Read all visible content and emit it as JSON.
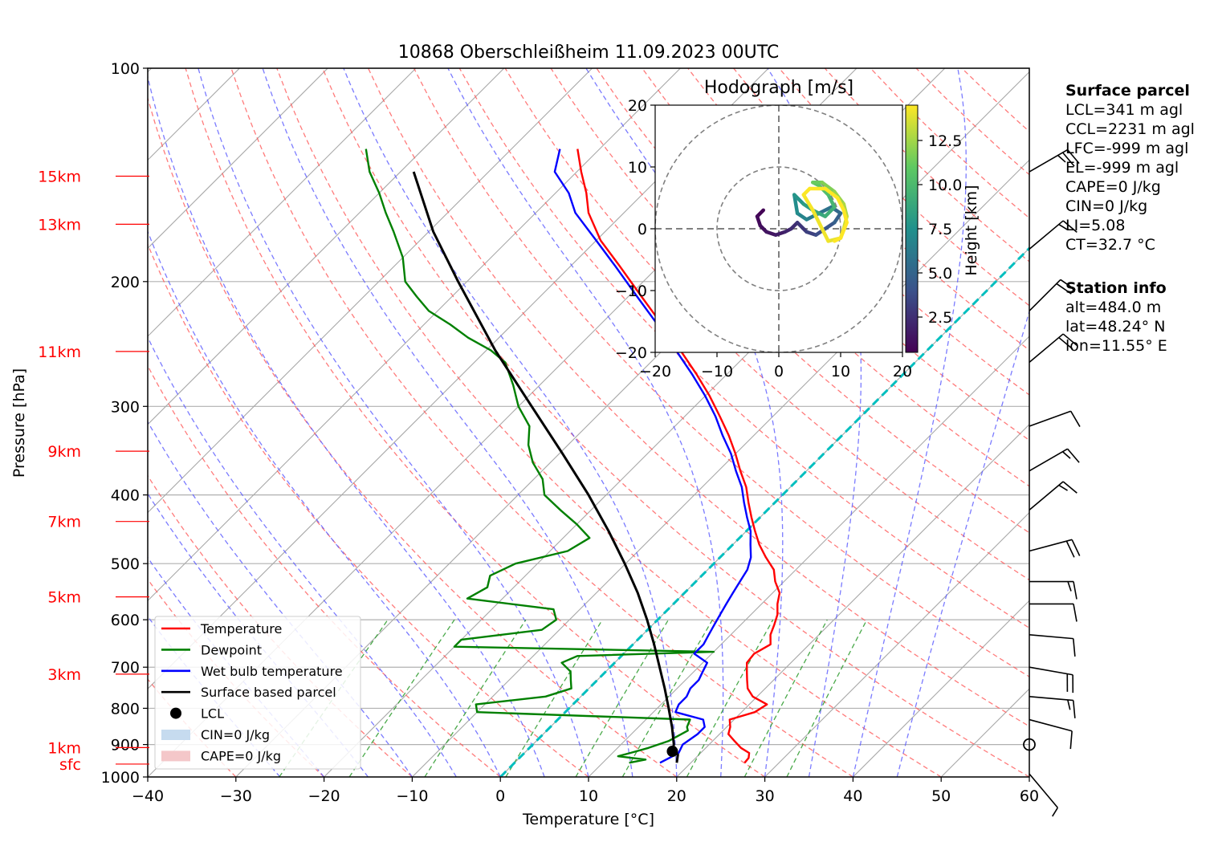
{
  "chart_data": {
    "type": "skew-t",
    "title": "10868 Oberschleißheim 11.09.2023 00UTC",
    "xlabel": "Temperature [°C]",
    "ylabel": "Pressure [hPa]",
    "xlim": [
      -40,
      60
    ],
    "ylim": [
      1000,
      100
    ],
    "x_ticks": [
      "−40",
      "−30",
      "−20",
      "−10",
      "0",
      "10",
      "20",
      "30",
      "40",
      "50",
      "60"
    ],
    "y_ticks": [
      "100",
      "200",
      "300",
      "400",
      "500",
      "600",
      "700",
      "800",
      "900",
      "1000"
    ],
    "height_labels": [
      "15km",
      "13km",
      "11km",
      "9km",
      "7km",
      "5km",
      "3km",
      "1km",
      "sfc"
    ],
    "height_label_pressures": [
      142,
      166,
      251,
      347,
      436,
      557,
      716,
      909,
      959
    ],
    "colors": {
      "temperature": "#ff0000",
      "dewpoint": "#008000",
      "wetbulb": "#0000ff",
      "parcel": "#000000",
      "lcl": "#000000",
      "cin_fill": "#c6dbef",
      "cape_fill": "#f4c7c9",
      "isotherm_zero": "#00bfbf",
      "height_labels": "#ff0000"
    },
    "series": [
      {
        "name": "Temperature",
        "points": [
          [
            955,
            26.1
          ],
          [
            940,
            26.0
          ],
          [
            925,
            25.5
          ],
          [
            910,
            24.0
          ],
          [
            890,
            22.5
          ],
          [
            870,
            21.0
          ],
          [
            850,
            20.4
          ],
          [
            830,
            19.5
          ],
          [
            810,
            21.5
          ],
          [
            790,
            22.0
          ],
          [
            770,
            19.5
          ],
          [
            750,
            18.0
          ],
          [
            730,
            17.0
          ],
          [
            710,
            16.0
          ],
          [
            690,
            15.0
          ],
          [
            670,
            14.8
          ],
          [
            650,
            15.6
          ],
          [
            630,
            14.5
          ],
          [
            610,
            13.8
          ],
          [
            590,
            13.0
          ],
          [
            570,
            11.8
          ],
          [
            550,
            10.8
          ],
          [
            530,
            9.0
          ],
          [
            510,
            7.5
          ],
          [
            490,
            5.2
          ],
          [
            470,
            3.0
          ],
          [
            450,
            1.0
          ],
          [
            430,
            -1.0
          ],
          [
            410,
            -3.0
          ],
          [
            390,
            -5.0
          ],
          [
            370,
            -7.5
          ],
          [
            350,
            -10.0
          ],
          [
            330,
            -12.8
          ],
          [
            310,
            -16.0
          ],
          [
            290,
            -19.5
          ],
          [
            270,
            -23.5
          ],
          [
            250,
            -28.0
          ],
          [
            230,
            -33.0
          ],
          [
            210,
            -38.5
          ],
          [
            190,
            -44.5
          ],
          [
            175,
            -49.5
          ],
          [
            160,
            -54.0
          ],
          [
            150,
            -56.5
          ],
          [
            140,
            -59.5
          ],
          [
            130,
            -62.5
          ]
        ]
      },
      {
        "name": "Dewpoint",
        "points": [
          [
            955,
            13.0
          ],
          [
            945,
            14.5
          ],
          [
            935,
            11.0
          ],
          [
            925,
            12.0
          ],
          [
            910,
            13.5
          ],
          [
            890,
            15.0
          ],
          [
            860,
            16.0
          ],
          [
            850,
            15.5
          ],
          [
            830,
            15.0
          ],
          [
            810,
            -10.0
          ],
          [
            790,
            -11.0
          ],
          [
            770,
            -4.0
          ],
          [
            750,
            -2.0
          ],
          [
            730,
            -3.0
          ],
          [
            710,
            -4.0
          ],
          [
            690,
            -6.0
          ],
          [
            675,
            -5.0
          ],
          [
            666,
            10.0
          ],
          [
            655,
            -20.0
          ],
          [
            640,
            -20.0
          ],
          [
            620,
            -12.0
          ],
          [
            600,
            -11.5
          ],
          [
            580,
            -13.0
          ],
          [
            560,
            -24.0
          ],
          [
            540,
            -23.0
          ],
          [
            520,
            -24.0
          ],
          [
            500,
            -22.5
          ],
          [
            480,
            -18.0
          ],
          [
            460,
            -17.0
          ],
          [
            440,
            -20.0
          ],
          [
            420,
            -23.5
          ],
          [
            400,
            -27.0
          ],
          [
            380,
            -29.0
          ],
          [
            360,
            -32.0
          ],
          [
            340,
            -34.5
          ],
          [
            320,
            -36.5
          ],
          [
            300,
            -40.0
          ],
          [
            280,
            -43.0
          ],
          [
            260,
            -46.5
          ],
          [
            250,
            -49.5
          ],
          [
            240,
            -53.5
          ],
          [
            230,
            -57.0
          ],
          [
            220,
            -61.0
          ],
          [
            210,
            -64.0
          ],
          [
            200,
            -67.0
          ],
          [
            185,
            -70.0
          ],
          [
            170,
            -74.0
          ],
          [
            160,
            -77.0
          ],
          [
            150,
            -80.0
          ],
          [
            140,
            -83.5
          ],
          [
            130,
            -86.5
          ]
        ]
      },
      {
        "name": "Wet bulb temperature",
        "points": [
          [
            955,
            16.5
          ],
          [
            940,
            17.0
          ],
          [
            925,
            17.5
          ],
          [
            900,
            17.0
          ],
          [
            870,
            17.5
          ],
          [
            850,
            17.5
          ],
          [
            830,
            16.5
          ],
          [
            810,
            12.5
          ],
          [
            790,
            12.0
          ],
          [
            770,
            12.0
          ],
          [
            750,
            11.5
          ],
          [
            730,
            11.5
          ],
          [
            710,
            11.0
          ],
          [
            690,
            10.5
          ],
          [
            670,
            8.0
          ],
          [
            650,
            8.0
          ],
          [
            630,
            7.5
          ],
          [
            610,
            7.0
          ],
          [
            590,
            6.5
          ],
          [
            570,
            6.0
          ],
          [
            550,
            5.5
          ],
          [
            530,
            5.0
          ],
          [
            510,
            4.5
          ],
          [
            490,
            3.5
          ],
          [
            470,
            2.0
          ],
          [
            450,
            0.5
          ],
          [
            430,
            -1.5
          ],
          [
            410,
            -3.5
          ],
          [
            390,
            -5.5
          ],
          [
            370,
            -8.0
          ],
          [
            350,
            -10.5
          ],
          [
            330,
            -13.5
          ],
          [
            310,
            -16.5
          ],
          [
            290,
            -20.0
          ],
          [
            270,
            -24.0
          ],
          [
            250,
            -28.5
          ],
          [
            230,
            -33.5
          ],
          [
            210,
            -39.0
          ],
          [
            190,
            -45.0
          ],
          [
            175,
            -50.0
          ],
          [
            160,
            -55.5
          ],
          [
            150,
            -58.5
          ],
          [
            140,
            -62.5
          ],
          [
            130,
            -64.5
          ]
        ]
      },
      {
        "name": "Surface based parcel",
        "points": [
          [
            955,
            18.4
          ],
          [
            930,
            17.6
          ],
          [
            920,
            16.6
          ],
          [
            900,
            16.0
          ],
          [
            850,
            13.8
          ],
          [
            800,
            11.3
          ],
          [
            750,
            8.6
          ],
          [
            700,
            5.6
          ],
          [
            650,
            2.4
          ],
          [
            600,
            -1.2
          ],
          [
            550,
            -5.3
          ],
          [
            500,
            -10.1
          ],
          [
            450,
            -15.6
          ],
          [
            400,
            -22.0
          ],
          [
            350,
            -29.6
          ],
          [
            300,
            -38.5
          ],
          [
            250,
            -49.0
          ],
          [
            200,
            -61.0
          ],
          [
            170,
            -69.5
          ],
          [
            140,
            -78.5
          ]
        ]
      }
    ],
    "lcl_point": {
      "pressure": 920,
      "temperature": 16.6
    },
    "legend": {
      "placement": "lower-left",
      "entries": [
        "Temperature",
        "Dewpoint",
        "Wet bulb temperature",
        "Surface based parcel",
        "LCL",
        "CIN=0 J/kg",
        "CAPE=0 J/kg"
      ]
    },
    "wind_barbs": [
      {
        "pressure": 140,
        "speed_kt": 25,
        "dir_deg": 240
      },
      {
        "pressure": 180,
        "speed_kt": 15,
        "dir_deg": 230
      },
      {
        "pressure": 220,
        "speed_kt": 20,
        "dir_deg": 225
      },
      {
        "pressure": 260,
        "speed_kt": 20,
        "dir_deg": 230
      },
      {
        "pressure": 320,
        "speed_kt": 10,
        "dir_deg": 250
      },
      {
        "pressure": 370,
        "speed_kt": 15,
        "dir_deg": 240
      },
      {
        "pressure": 420,
        "speed_kt": 15,
        "dir_deg": 230
      },
      {
        "pressure": 480,
        "speed_kt": 20,
        "dir_deg": 255
      },
      {
        "pressure": 530,
        "speed_kt": 15,
        "dir_deg": 270
      },
      {
        "pressure": 570,
        "speed_kt": 10,
        "dir_deg": 270
      },
      {
        "pressure": 630,
        "speed_kt": 10,
        "dir_deg": 275
      },
      {
        "pressure": 700,
        "speed_kt": 20,
        "dir_deg": 280
      },
      {
        "pressure": 770,
        "speed_kt": 15,
        "dir_deg": 275
      },
      {
        "pressure": 830,
        "speed_kt": 10,
        "dir_deg": 285
      },
      {
        "pressure": 900,
        "speed_kt": 0,
        "dir_deg": 0
      },
      {
        "pressure": 990,
        "speed_kt": 5,
        "dir_deg": 320
      }
    ],
    "hodograph": {
      "title": "Hodograph [m/s]",
      "xlim": [
        -20,
        20
      ],
      "ylim": [
        -20,
        20
      ],
      "ticks": [
        "−20",
        "−10",
        "0",
        "10",
        "20"
      ],
      "rings": [
        10,
        20
      ],
      "colorbar_label": "Height [km]",
      "colorbar_ticks": [
        "2.5",
        "5.0",
        "7.5",
        "10.0",
        "12.5"
      ],
      "colorbar_range": [
        0.5,
        14.5
      ],
      "points": [
        {
          "u": -2.5,
          "v": 3.0,
          "h": 0.5
        },
        {
          "u": -3.5,
          "v": 2.0,
          "h": 0.8
        },
        {
          "u": -3.0,
          "v": 0.5,
          "h": 1.0
        },
        {
          "u": -2.0,
          "v": -0.5,
          "h": 1.2
        },
        {
          "u": -0.5,
          "v": -1.0,
          "h": 1.5
        },
        {
          "u": 1.0,
          "v": -0.5,
          "h": 1.8
        },
        {
          "u": 2.0,
          "v": 0.0,
          "h": 2.2
        },
        {
          "u": 3.0,
          "v": 1.0,
          "h": 2.6
        },
        {
          "u": 4.5,
          "v": -0.5,
          "h": 3.0
        },
        {
          "u": 6.0,
          "v": -1.0,
          "h": 3.5
        },
        {
          "u": 7.5,
          "v": 0.0,
          "h": 4.0
        },
        {
          "u": 9.0,
          "v": 1.0,
          "h": 4.5
        },
        {
          "u": 10.0,
          "v": 2.5,
          "h": 5.0
        },
        {
          "u": 8.5,
          "v": 3.5,
          "h": 5.5
        },
        {
          "u": 6.5,
          "v": 2.5,
          "h": 6.0
        },
        {
          "u": 4.5,
          "v": 1.5,
          "h": 6.5
        },
        {
          "u": 3.0,
          "v": 2.5,
          "h": 7.0
        },
        {
          "u": 2.5,
          "v": 5.5,
          "h": 7.5
        },
        {
          "u": 4.0,
          "v": 4.0,
          "h": 8.0
        },
        {
          "u": 5.5,
          "v": 3.0,
          "h": 8.5
        },
        {
          "u": 7.5,
          "v": 2.0,
          "h": 9.0
        },
        {
          "u": 9.0,
          "v": 3.5,
          "h": 9.5
        },
        {
          "u": 8.0,
          "v": 5.5,
          "h": 10.0
        },
        {
          "u": 6.5,
          "v": 7.0,
          "h": 10.5
        },
        {
          "u": 5.5,
          "v": 7.5,
          "h": 11.0
        },
        {
          "u": 7.0,
          "v": 7.5,
          "h": 11.5
        },
        {
          "u": 9.0,
          "v": 6.0,
          "h": 12.0
        },
        {
          "u": 10.5,
          "v": 4.0,
          "h": 12.5
        },
        {
          "u": 11.0,
          "v": 2.0,
          "h": 13.0
        },
        {
          "u": 10.5,
          "v": 0.0,
          "h": 13.5
        },
        {
          "u": 10.0,
          "v": -1.5,
          "h": 13.8
        },
        {
          "u": 8.0,
          "v": -2.0,
          "h": 14.1
        },
        {
          "u": 5.5,
          "v": 3.0,
          "h": 14.3
        },
        {
          "u": 4.0,
          "v": 5.5,
          "h": 14.4
        },
        {
          "u": 5.0,
          "v": 6.5,
          "h": 14.5
        },
        {
          "u": 7.5,
          "v": 6.5,
          "h": 14.5
        },
        {
          "u": 9.5,
          "v": 5.0,
          "h": 14.5
        },
        {
          "u": 10.5,
          "v": 3.0,
          "h": 14.5
        },
        {
          "u": 11.0,
          "v": 1.0,
          "h": 14.5
        },
        {
          "u": 10.0,
          "v": -1.5,
          "h": 14.5
        },
        {
          "u": 9.0,
          "v": -2.0,
          "h": 14.5
        }
      ]
    }
  },
  "surface_parcel": {
    "heading": "Surface parcel",
    "lines": [
      "LCL=341 m agl",
      "CCL=2231 m agl",
      "LFC=-999 m agl",
      "EL=-999 m agl",
      "CAPE=0 J/kg",
      "CIN=0 J/kg",
      "LI=5.08",
      "CT=32.7 °C"
    ]
  },
  "station_info": {
    "heading": "Station info",
    "lines": [
      "alt=484.0 m",
      "lat=48.24° N",
      "lon=11.55° E"
    ]
  }
}
